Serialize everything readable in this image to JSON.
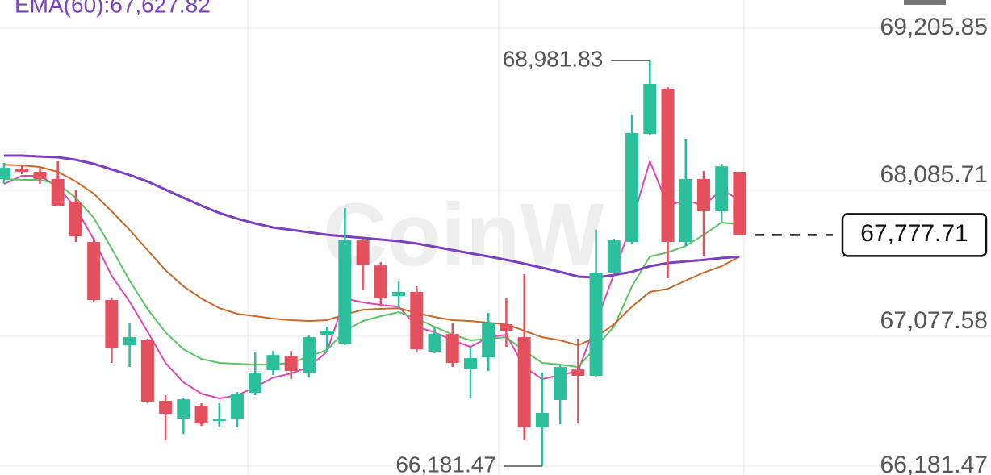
{
  "chart_data": {
    "type": "candlestick",
    "watermark": "CoinW",
    "legend": {
      "text": "EMA(60):67,627.82",
      "color": "#7b3fbf"
    },
    "ylim": [
      66120.2,
      69399.8
    ],
    "yticks": [
      {
        "value": 69205.85,
        "label": "69,205.85"
      },
      {
        "value": 68085.71,
        "label": "68,085.71"
      },
      {
        "value": 67077.58,
        "label": "67,077.58"
      },
      {
        "value": 66181.47,
        "label": "66,181.47"
      }
    ],
    "up_color": "#2bbf9b",
    "down_color": "#e5505f",
    "open": [
      68164,
      68236,
      68214,
      68164,
      68008,
      67729,
      67328,
      67016,
      67050,
      66632,
      66510,
      66599,
      66493,
      66504,
      66688,
      66844,
      66944,
      66827,
      67089,
      67027,
      67740,
      67567,
      67356,
      67384,
      66972,
      67094,
      66855,
      66933,
      67161,
      67072,
      66448,
      66638,
      66849,
      66805,
      67518,
      67729,
      68475,
      68787,
      67729,
      68164,
      67941,
      68214
    ],
    "high": [
      68275,
      68258,
      68241,
      68286,
      68091,
      67757,
      67339,
      67172,
      67061,
      66671,
      66654,
      66615,
      66615,
      66693,
      66972,
      66977,
      66977,
      67083,
      67144,
      67963,
      67751,
      67590,
      67462,
      67423,
      67144,
      67172,
      67005,
      67239,
      67339,
      67506,
      66827,
      66877,
      67061,
      67813,
      67751,
      68609,
      68981.83,
      68798,
      68442,
      68219,
      68269,
      68214
    ],
    "low": [
      68130,
      68197,
      68130,
      67974,
      67729,
      67312,
      66894,
      66866,
      66615,
      66359,
      66404,
      66459,
      66448,
      66448,
      66671,
      66810,
      66782,
      66793,
      66972,
      67016,
      67395,
      67283,
      67272,
      66972,
      66960,
      66866,
      66649,
      66838,
      67005,
      66365,
      66181.47,
      66471,
      66476,
      66793,
      67506,
      67718,
      68464,
      67479,
      67701,
      67629,
      67863,
      67777.71
    ],
    "close": [
      68241,
      68214,
      68164,
      67980,
      67768,
      67328,
      66994,
      67072,
      66626,
      66543,
      66643,
      66476,
      66504,
      66682,
      66827,
      66949,
      66838,
      67072,
      67116,
      67740,
      67573,
      67339,
      67384,
      66988,
      67094,
      66894,
      66927,
      67172,
      67116,
      66448,
      66549,
      66866,
      66805,
      67518,
      67740,
      68481,
      68821,
      67729,
      68164,
      67941,
      68252,
      67777.71
    ],
    "series": [
      {
        "color": "#e046b4",
        "values": [
          68130,
          68186,
          68186,
          68108,
          67963,
          67746,
          67495,
          67317,
          67111,
          66894,
          66760,
          66682,
          66649,
          66671,
          66727,
          66793,
          66821,
          66866,
          66972,
          67339,
          67312,
          67295,
          67283,
          67144,
          67105,
          67050,
          67005,
          67072,
          67089,
          66866,
          66782,
          66810,
          66838,
          67172,
          67506,
          67868,
          68286,
          67980,
          68018,
          67980,
          68091,
          68018
        ]
      },
      {
        "color": "#5cc463",
        "values": [
          68164,
          68158,
          68158,
          68130,
          68035,
          67896,
          67684,
          67462,
          67267,
          67105,
          66988,
          66922,
          66894,
          66888,
          66883,
          66883,
          66894,
          66938,
          66983,
          67116,
          67183,
          67217,
          67245,
          67200,
          67144,
          67089,
          67050,
          67061,
          67072,
          66977,
          66894,
          66883,
          66866,
          67005,
          67144,
          67423,
          67629,
          67657,
          67701,
          67779,
          67863,
          67851
        ]
      },
      {
        "color": "#c8692a",
        "values": [
          68263,
          68258,
          68247,
          68214,
          68147,
          68063,
          67941,
          67813,
          67673,
          67534,
          67423,
          67339,
          67272,
          67233,
          67217,
          67200,
          67189,
          67183,
          67189,
          67228,
          67261,
          67267,
          67272,
          67239,
          67211,
          67189,
          67183,
          67172,
          67161,
          67116,
          67072,
          67050,
          67016,
          67072,
          67161,
          67283,
          67384,
          67406,
          67462,
          67518,
          67562,
          67629
        ]
      },
      {
        "color": "#7b3fbf",
        "values": [
          68325,
          68325,
          68319,
          68314,
          68297,
          68269,
          68230,
          68191,
          68147,
          68091,
          68035,
          67980,
          67929,
          67890,
          67857,
          67829,
          67813,
          67796,
          67779,
          67768,
          67757,
          67746,
          67735,
          67718,
          67696,
          67673,
          67651,
          67629,
          67606,
          67579,
          67551,
          67523,
          67490,
          67484,
          67501,
          67523,
          67562,
          67584,
          67595,
          67606,
          67618,
          67627.82
        ]
      }
    ],
    "max_label": {
      "value": 68981.83,
      "label": "68,981.83"
    },
    "min_label": {
      "value": 66181.47,
      "label": "66,181.47"
    },
    "last_price": {
      "value": 67777.71,
      "label": "67,777.71"
    }
  }
}
